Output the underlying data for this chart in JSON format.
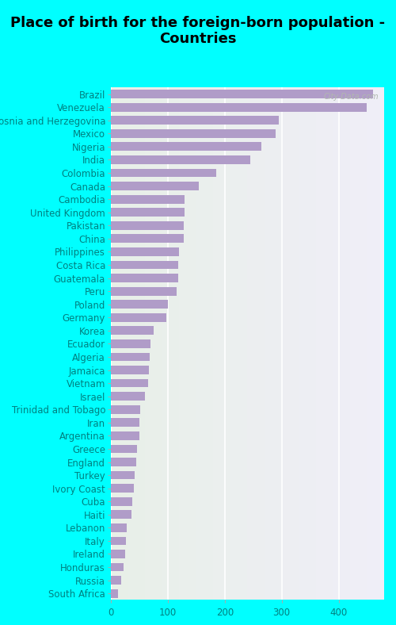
{
  "title": "Place of birth for the foreign-born population -\nCountries",
  "categories": [
    "Brazil",
    "Venezuela",
    "Bosnia and Herzegovina",
    "Mexico",
    "Nigeria",
    "India",
    "Colombia",
    "Canada",
    "Cambodia",
    "United Kingdom",
    "Pakistan",
    "China",
    "Philippines",
    "Costa Rica",
    "Guatemala",
    "Peru",
    "Poland",
    "Germany",
    "Korea",
    "Ecuador",
    "Algeria",
    "Jamaica",
    "Vietnam",
    "Israel",
    "Trinidad and Tobago",
    "Iran",
    "Argentina",
    "Greece",
    "England",
    "Turkey",
    "Ivory Coast",
    "Cuba",
    "Haiti",
    "Lebanon",
    "Italy",
    "Ireland",
    "Honduras",
    "Russia",
    "South Africa"
  ],
  "values": [
    460,
    450,
    295,
    290,
    265,
    245,
    185,
    155,
    130,
    130,
    128,
    128,
    120,
    118,
    118,
    115,
    100,
    98,
    75,
    70,
    68,
    67,
    65,
    60,
    52,
    50,
    50,
    46,
    44,
    42,
    40,
    38,
    36,
    28,
    26,
    25,
    22,
    18,
    12
  ],
  "bar_color": "#b09cc8",
  "bg_color": "#00ffff",
  "title_fontsize": 13,
  "tick_fontsize": 8.5,
  "xlim": [
    0,
    480
  ],
  "xticks": [
    0,
    100,
    200,
    300,
    400
  ],
  "watermark": "City-Data.com"
}
